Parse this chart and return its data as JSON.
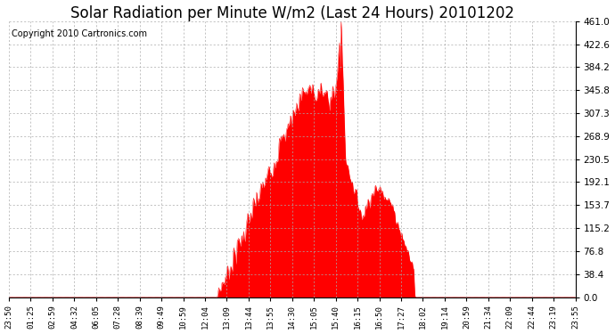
{
  "title": "Solar Radiation per Minute W/m2 (Last 24 Hours) 20101202",
  "copyright": "Copyright 2010 Cartronics.com",
  "yticks": [
    0.0,
    38.4,
    76.8,
    115.2,
    153.7,
    192.1,
    230.5,
    268.9,
    307.3,
    345.8,
    384.2,
    422.6,
    461.0
  ],
  "ymax": 461.0,
  "xtick_labels": [
    "23:50",
    "01:25",
    "02:59",
    "04:32",
    "06:05",
    "07:28",
    "08:39",
    "09:49",
    "10:59",
    "12:04",
    "13:09",
    "13:44",
    "13:55",
    "14:30",
    "15:05",
    "15:40",
    "16:15",
    "16:50",
    "17:27",
    "18:02",
    "19:14",
    "20:59",
    "21:34",
    "22:09",
    "22:44",
    "23:19",
    "23:55"
  ],
  "fill_color": "#FF0000",
  "line_color": "#FF0000",
  "bg_color": "#FFFFFF",
  "grid_color": "#AAAAAA",
  "title_fontsize": 12,
  "copyright_fontsize": 7
}
